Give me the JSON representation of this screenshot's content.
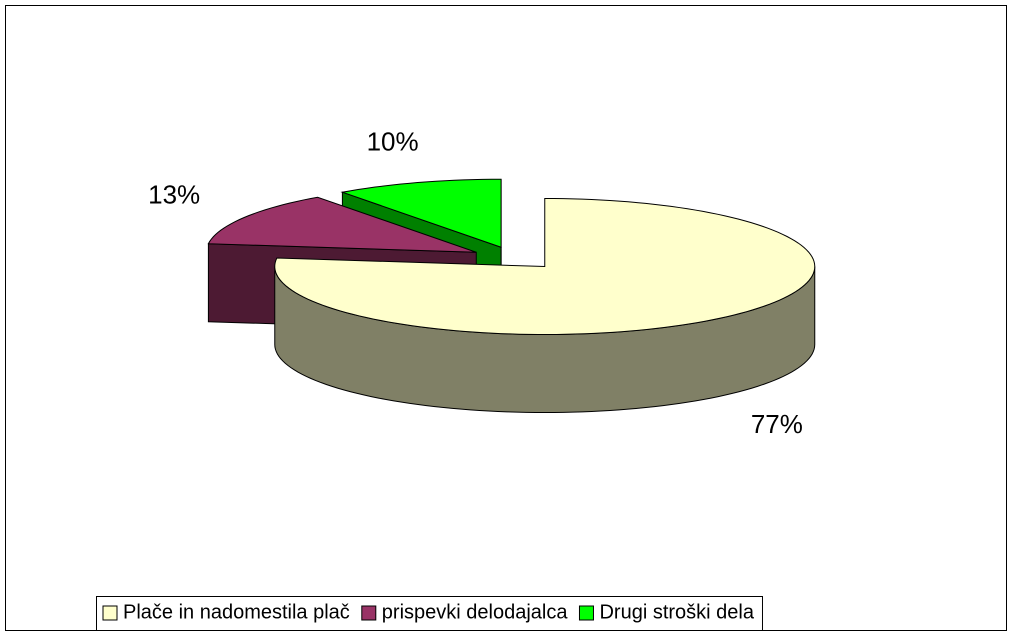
{
  "chart_data": {
    "type": "pie",
    "categories": [
      "Plače in nadomestila plač",
      "prispevki delodajalca",
      "Drugi stroški dela"
    ],
    "values": [
      77,
      13,
      10
    ],
    "value_labels": [
      "77%",
      "13%",
      "10%"
    ],
    "colors": [
      "#FFFFCC",
      "#993366",
      "#00FF00"
    ],
    "legend": "bottom"
  }
}
